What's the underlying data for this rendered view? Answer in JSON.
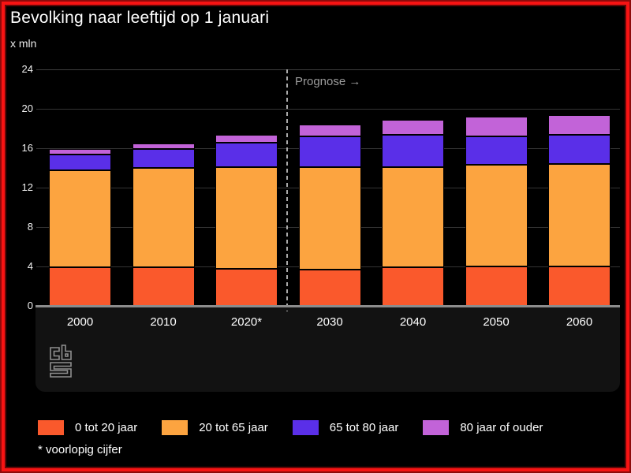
{
  "header": {
    "title": "Bevolking naar leeftijd op 1 januari",
    "unit": "x mln"
  },
  "chart_data": {
    "type": "bar",
    "stacked": true,
    "title": "Bevolking naar leeftijd op 1 januari",
    "ylabel": "x mln",
    "xlabel": "",
    "categories": [
      "2000",
      "2010",
      "2020*",
      "2030",
      "2040",
      "2050",
      "2060"
    ],
    "series": [
      {
        "name": "0 tot 20 jaar",
        "color": "#fa592c",
        "values": [
          3.9,
          3.9,
          3.8,
          3.7,
          3.9,
          4.0,
          4.0
        ]
      },
      {
        "name": "20 tot 65 jaar",
        "color": "#fca440",
        "values": [
          9.9,
          10.1,
          10.3,
          10.4,
          10.2,
          10.3,
          10.4
        ]
      },
      {
        "name": "65 tot 80 jaar",
        "color": "#5a2fe8",
        "values": [
          1.6,
          1.9,
          2.5,
          3.1,
          3.3,
          2.9,
          3.0
        ]
      },
      {
        "name": "80 jaar of ouder",
        "color": "#c263d8",
        "values": [
          0.5,
          0.6,
          0.8,
          1.2,
          1.5,
          2.0,
          2.0
        ]
      }
    ],
    "totals": [
      15.9,
      16.5,
      17.4,
      18.4,
      18.9,
      19.2,
      19.4
    ],
    "ylim": [
      0,
      24
    ],
    "yticks": [
      0,
      4,
      8,
      12,
      16,
      20,
      24
    ],
    "grid": true,
    "legend_position": "bottom",
    "annotation": {
      "label": "Prognose →",
      "between_categories": [
        "2020*",
        "2030"
      ]
    }
  },
  "footnote": {
    "text": "* voorlopig cijfer"
  },
  "logo": {
    "name": "cbs-logo"
  },
  "colors": {
    "frame": "#f71313",
    "background": "#000000",
    "panel": "#121212",
    "axis_line": "#8c8c8c",
    "gridline": "#343434",
    "text": "#ffffff",
    "muted_text": "#9c9c9c"
  }
}
